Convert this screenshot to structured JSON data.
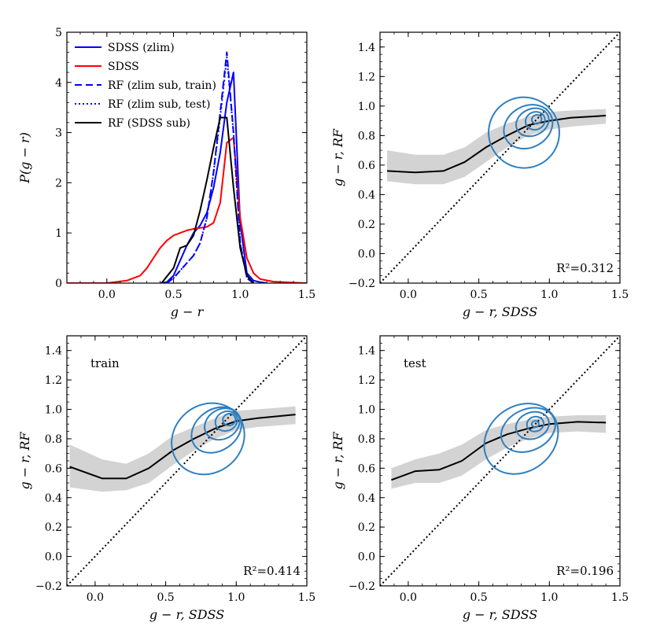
{
  "chart_data": [
    {
      "type": "line",
      "id": "hist",
      "xlabel": "g − r",
      "ylabel": "P(g − r)",
      "xlim": [
        -0.3,
        1.5
      ],
      "ylim": [
        0,
        5
      ],
      "xticks": [
        0.0,
        0.5,
        1.0,
        1.5
      ],
      "xtick_labels": [
        "0.0",
        "0.5",
        "1.0",
        "1.5"
      ],
      "yticks": [
        0,
        1,
        2,
        3,
        4,
        5
      ],
      "ytick_labels": [
        "0",
        "1",
        "2",
        "3",
        "4",
        "5"
      ],
      "legend_position": "top-left",
      "series": [
        {
          "name": "SDSS (z_lim)",
          "legend": "SDSS (zlim)",
          "color": "#0000ff",
          "style": "solid",
          "x": [
            0.4,
            0.45,
            0.5,
            0.55,
            0.6,
            0.65,
            0.7,
            0.75,
            0.8,
            0.85,
            0.9,
            0.95,
            1.0,
            1.05,
            1.1,
            1.15,
            1.2
          ],
          "y": [
            0.0,
            0.02,
            0.15,
            0.45,
            0.75,
            1.0,
            1.15,
            1.4,
            1.9,
            2.6,
            3.6,
            4.2,
            1.2,
            0.2,
            0.05,
            0.02,
            0.0
          ]
        },
        {
          "name": "SDSS",
          "legend": "SDSS",
          "color": "#ff0000",
          "style": "solid",
          "x": [
            -0.3,
            0.0,
            0.15,
            0.25,
            0.3,
            0.35,
            0.4,
            0.45,
            0.5,
            0.55,
            0.6,
            0.65,
            0.7,
            0.75,
            0.8,
            0.85,
            0.9,
            0.95,
            1.0,
            1.05,
            1.1,
            1.15,
            1.25,
            1.4,
            1.5
          ],
          "y": [
            0.0,
            0.0,
            0.05,
            0.15,
            0.3,
            0.5,
            0.7,
            0.85,
            0.95,
            1.0,
            1.05,
            1.08,
            1.1,
            1.12,
            1.2,
            1.6,
            2.8,
            2.9,
            1.3,
            0.5,
            0.2,
            0.08,
            0.03,
            0.01,
            0.0
          ]
        },
        {
          "name": "RF (z_lim sub, train)",
          "legend": "RF (zlim sub, train)",
          "color": "#0000ff",
          "style": "dashed",
          "x": [
            0.45,
            0.5,
            0.55,
            0.6,
            0.65,
            0.7,
            0.75,
            0.8,
            0.85,
            0.9,
            0.95,
            1.0,
            1.05,
            1.1
          ],
          "y": [
            0.0,
            0.1,
            0.25,
            0.4,
            0.55,
            0.8,
            1.3,
            2.2,
            3.4,
            4.6,
            3.0,
            0.8,
            0.1,
            0.0
          ]
        },
        {
          "name": "RF (z_lim sub, test)",
          "legend": "RF (zlim sub, test)",
          "color": "#0000ff",
          "style": "dotted",
          "x": [
            0.45,
            0.5,
            0.55,
            0.6,
            0.65,
            0.7,
            0.75,
            0.8,
            0.85,
            0.9,
            0.95,
            1.0,
            1.05,
            1.1
          ],
          "y": [
            0.0,
            0.1,
            0.25,
            0.4,
            0.55,
            0.8,
            1.3,
            2.2,
            3.3,
            4.5,
            3.0,
            0.8,
            0.1,
            0.0
          ]
        },
        {
          "name": "RF (SDSS sub)",
          "legend": "RF (SDSS sub)",
          "color": "#000000",
          "style": "solid",
          "x": [
            0.41,
            0.5,
            0.55,
            0.6,
            0.65,
            0.7,
            0.75,
            0.8,
            0.85,
            0.9,
            0.95,
            1.0,
            1.05,
            1.1
          ],
          "y": [
            0.0,
            0.3,
            0.7,
            0.75,
            0.95,
            1.45,
            2.05,
            2.7,
            3.3,
            3.3,
            1.9,
            0.7,
            0.15,
            0.0
          ]
        }
      ]
    },
    {
      "type": "scatter",
      "id": "all",
      "xlabel": "g − r, SDSS",
      "ylabel": "g − r, RF",
      "xlim": [
        -0.2,
        1.5
      ],
      "ylim": [
        -0.2,
        1.5
      ],
      "xticks": [
        0.0,
        0.5,
        1.0,
        1.5
      ],
      "xtick_labels": [
        "0.0",
        "0.5",
        "1.0",
        "1.5"
      ],
      "yticks": [
        -0.2,
        0.0,
        0.2,
        0.4,
        0.6,
        0.8,
        1.0,
        1.2,
        1.4
      ],
      "ytick_labels": [
        "−0.2",
        "0.0",
        "0.2",
        "0.4",
        "0.6",
        "0.8",
        "1.0",
        "1.2",
        "1.4"
      ],
      "label": "",
      "r2_text": "R²=0.312",
      "median": {
        "x": [
          -0.15,
          0.05,
          0.25,
          0.4,
          0.55,
          0.7,
          0.85,
          1.0,
          1.15,
          1.4
        ],
        "y": [
          0.56,
          0.55,
          0.56,
          0.62,
          0.72,
          0.8,
          0.87,
          0.9,
          0.92,
          0.935
        ],
        "lo": [
          0.49,
          0.47,
          0.47,
          0.52,
          0.62,
          0.72,
          0.8,
          0.84,
          0.86,
          0.88
        ],
        "hi": [
          0.7,
          0.67,
          0.67,
          0.72,
          0.82,
          0.88,
          0.93,
          0.96,
          0.97,
          0.98
        ]
      },
      "contours": [
        {
          "cx": 0.82,
          "cy": 0.82,
          "rx": 0.25,
          "ry": 0.24,
          "angle": 40
        },
        {
          "cx": 0.85,
          "cy": 0.86,
          "rx": 0.18,
          "ry": 0.14,
          "angle": 30
        },
        {
          "cx": 0.88,
          "cy": 0.89,
          "rx": 0.12,
          "ry": 0.09,
          "angle": 25
        },
        {
          "cx": 0.9,
          "cy": 0.9,
          "rx": 0.07,
          "ry": 0.06,
          "angle": 20
        },
        {
          "cx": 0.91,
          "cy": 0.91,
          "rx": 0.035,
          "ry": 0.03,
          "angle": 20
        }
      ]
    },
    {
      "type": "scatter",
      "id": "train",
      "xlabel": "g − r, SDSS",
      "ylabel": "g − r, RF",
      "xlim": [
        -0.2,
        1.5
      ],
      "ylim": [
        -0.2,
        1.5
      ],
      "xticks": [
        0.0,
        0.5,
        1.0,
        1.5
      ],
      "xtick_labels": [
        "0.0",
        "0.5",
        "1.0",
        "1.5"
      ],
      "yticks": [
        -0.2,
        0.0,
        0.2,
        0.4,
        0.6,
        0.8,
        1.0,
        1.2,
        1.4
      ],
      "ytick_labels": [
        "−0.2",
        "0.0",
        "0.2",
        "0.4",
        "0.6",
        "0.8",
        "1.0",
        "1.2",
        "1.4"
      ],
      "label": "train",
      "r2_text": "R²=0.414",
      "median": {
        "x": [
          -0.18,
          0.05,
          0.22,
          0.38,
          0.55,
          0.7,
          0.85,
          1.0,
          1.15,
          1.42
        ],
        "y": [
          0.61,
          0.53,
          0.53,
          0.6,
          0.72,
          0.8,
          0.87,
          0.92,
          0.94,
          0.965
        ],
        "lo": [
          0.47,
          0.44,
          0.45,
          0.5,
          0.62,
          0.72,
          0.8,
          0.86,
          0.88,
          0.9
        ],
        "hi": [
          0.76,
          0.66,
          0.63,
          0.7,
          0.82,
          0.88,
          0.94,
          0.99,
          1.0,
          1.02
        ]
      },
      "contours": [
        {
          "cx": 0.8,
          "cy": 0.8,
          "rx": 0.27,
          "ry": 0.23,
          "angle": 40
        },
        {
          "cx": 0.86,
          "cy": 0.86,
          "rx": 0.19,
          "ry": 0.14,
          "angle": 35
        },
        {
          "cx": 0.9,
          "cy": 0.9,
          "rx": 0.13,
          "ry": 0.1,
          "angle": 30
        },
        {
          "cx": 0.93,
          "cy": 0.92,
          "rx": 0.08,
          "ry": 0.065,
          "angle": 25
        },
        {
          "cx": 0.95,
          "cy": 0.93,
          "rx": 0.045,
          "ry": 0.04,
          "angle": 20
        }
      ]
    },
    {
      "type": "scatter",
      "id": "test",
      "xlabel": "g − r, SDSS",
      "ylabel": "g − r, RF",
      "xlim": [
        -0.2,
        1.5
      ],
      "ylim": [
        -0.2,
        1.5
      ],
      "xticks": [
        0.0,
        0.5,
        1.0,
        1.5
      ],
      "xtick_labels": [
        "0.0",
        "0.5",
        "1.0",
        "1.5"
      ],
      "yticks": [
        -0.2,
        0.0,
        0.2,
        0.4,
        0.6,
        0.8,
        1.0,
        1.2,
        1.4
      ],
      "ytick_labels": [
        "−0.2",
        "0.0",
        "0.2",
        "0.4",
        "0.6",
        "0.8",
        "1.0",
        "1.2",
        "1.4"
      ],
      "label": "test",
      "r2_text": "R²=0.196",
      "median": {
        "x": [
          -0.12,
          0.05,
          0.22,
          0.38,
          0.55,
          0.7,
          0.85,
          1.0,
          1.2,
          1.4
        ],
        "y": [
          0.52,
          0.58,
          0.59,
          0.65,
          0.77,
          0.83,
          0.87,
          0.9,
          0.915,
          0.91
        ],
        "lo": [
          0.46,
          0.5,
          0.5,
          0.55,
          0.66,
          0.74,
          0.8,
          0.84,
          0.85,
          0.84
        ],
        "hi": [
          0.6,
          0.66,
          0.7,
          0.76,
          0.86,
          0.9,
          0.93,
          0.95,
          0.96,
          0.96
        ]
      },
      "contours": [
        {
          "cx": 0.8,
          "cy": 0.8,
          "rx": 0.28,
          "ry": 0.22,
          "angle": 38
        },
        {
          "cx": 0.85,
          "cy": 0.86,
          "rx": 0.2,
          "ry": 0.14,
          "angle": 25
        },
        {
          "cx": 0.88,
          "cy": 0.89,
          "rx": 0.12,
          "ry": 0.09,
          "angle": 20
        },
        {
          "cx": 0.9,
          "cy": 0.9,
          "rx": 0.06,
          "ry": 0.05,
          "angle": 15
        },
        {
          "cx": 0.9,
          "cy": 0.9,
          "rx": 0.025,
          "ry": 0.022,
          "angle": 10
        }
      ]
    }
  ],
  "colors": {
    "contour": "#2f7fbf",
    "band": "#d3d3d3",
    "median": "#000000",
    "axes": "#000000"
  }
}
